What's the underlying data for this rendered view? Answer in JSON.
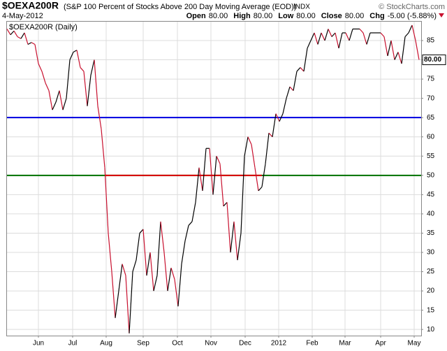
{
  "chart_data": {
    "type": "line",
    "title": "$OEXA200R",
    "subtitle": "(S&P 100 Percent of Stocks Above 200 Day Moving Average (EOD))",
    "exchange": "INDX",
    "credit": "© StockCharts.com",
    "date": "4-May-2012",
    "quote": [
      {
        "label": "Open",
        "value": "80.00"
      },
      {
        "label": "High",
        "value": "80.00"
      },
      {
        "label": "Low",
        "value": "80.00"
      },
      {
        "label": "Close",
        "value": "80.00"
      },
      {
        "label": "Chg",
        "value": "-5.00 (-5.88%)"
      }
    ],
    "legend_label": "$OEXA200R (Daily)",
    "last_value_label": "80.00",
    "up_color": "#000000",
    "down_color": "#c8102e",
    "values": [
      88,
      86.5,
      87.5,
      86,
      85.5,
      87,
      84,
      84.5,
      84,
      79,
      77,
      74,
      72,
      67,
      69,
      72,
      67,
      70,
      80,
      82,
      82.5,
      78,
      77,
      68,
      76,
      80,
      68,
      62,
      52,
      35,
      25,
      13,
      20,
      27,
      24,
      9,
      25,
      28,
      35,
      36,
      24,
      30,
      20,
      24,
      38,
      30,
      20,
      26,
      23,
      16,
      27,
      33,
      37,
      38,
      43,
      52,
      46,
      57,
      57,
      45,
      55,
      53,
      42,
      43,
      30,
      38,
      28,
      35,
      55,
      60,
      58,
      52,
      46,
      47,
      53,
      61,
      60,
      66,
      64,
      66,
      70,
      73,
      72,
      77,
      78,
      77,
      83,
      85,
      87,
      84,
      87,
      85,
      88,
      86,
      87,
      83,
      87,
      87,
      85,
      88,
      88,
      88,
      87,
      84,
      87,
      87,
      87,
      87,
      86,
      81,
      85,
      80,
      82,
      79,
      86,
      87,
      89,
      85,
      80
    ],
    "xlim": [
      0,
      118.6
    ],
    "xticks": [
      {
        "value": 9,
        "label": "Jun"
      },
      {
        "value": 18.8,
        "label": "Jul"
      },
      {
        "value": 28.4,
        "label": "Aug"
      },
      {
        "value": 39,
        "label": "Sep"
      },
      {
        "value": 48.8,
        "label": "Oct"
      },
      {
        "value": 58.4,
        "label": "Nov"
      },
      {
        "value": 68.2,
        "label": "Dec"
      },
      {
        "value": 77.8,
        "label": "2012"
      },
      {
        "value": 87.4,
        "label": "Feb"
      },
      {
        "value": 96.8,
        "label": "Mar"
      },
      {
        "value": 107,
        "label": "Apr"
      },
      {
        "value": 116.6,
        "label": "May"
      }
    ],
    "ylim": [
      8.4,
      89.9
    ],
    "yticks": [
      10,
      15,
      20,
      25,
      30,
      35,
      40,
      45,
      50,
      55,
      60,
      65,
      70,
      75,
      80,
      85
    ],
    "grid": true,
    "reference_lines": [
      {
        "value": 65,
        "color": "#0000e0"
      },
      {
        "value": 50,
        "color": "#007000"
      },
      {
        "value": 50,
        "color": "#e00000",
        "from": 28,
        "to": 73
      }
    ]
  }
}
